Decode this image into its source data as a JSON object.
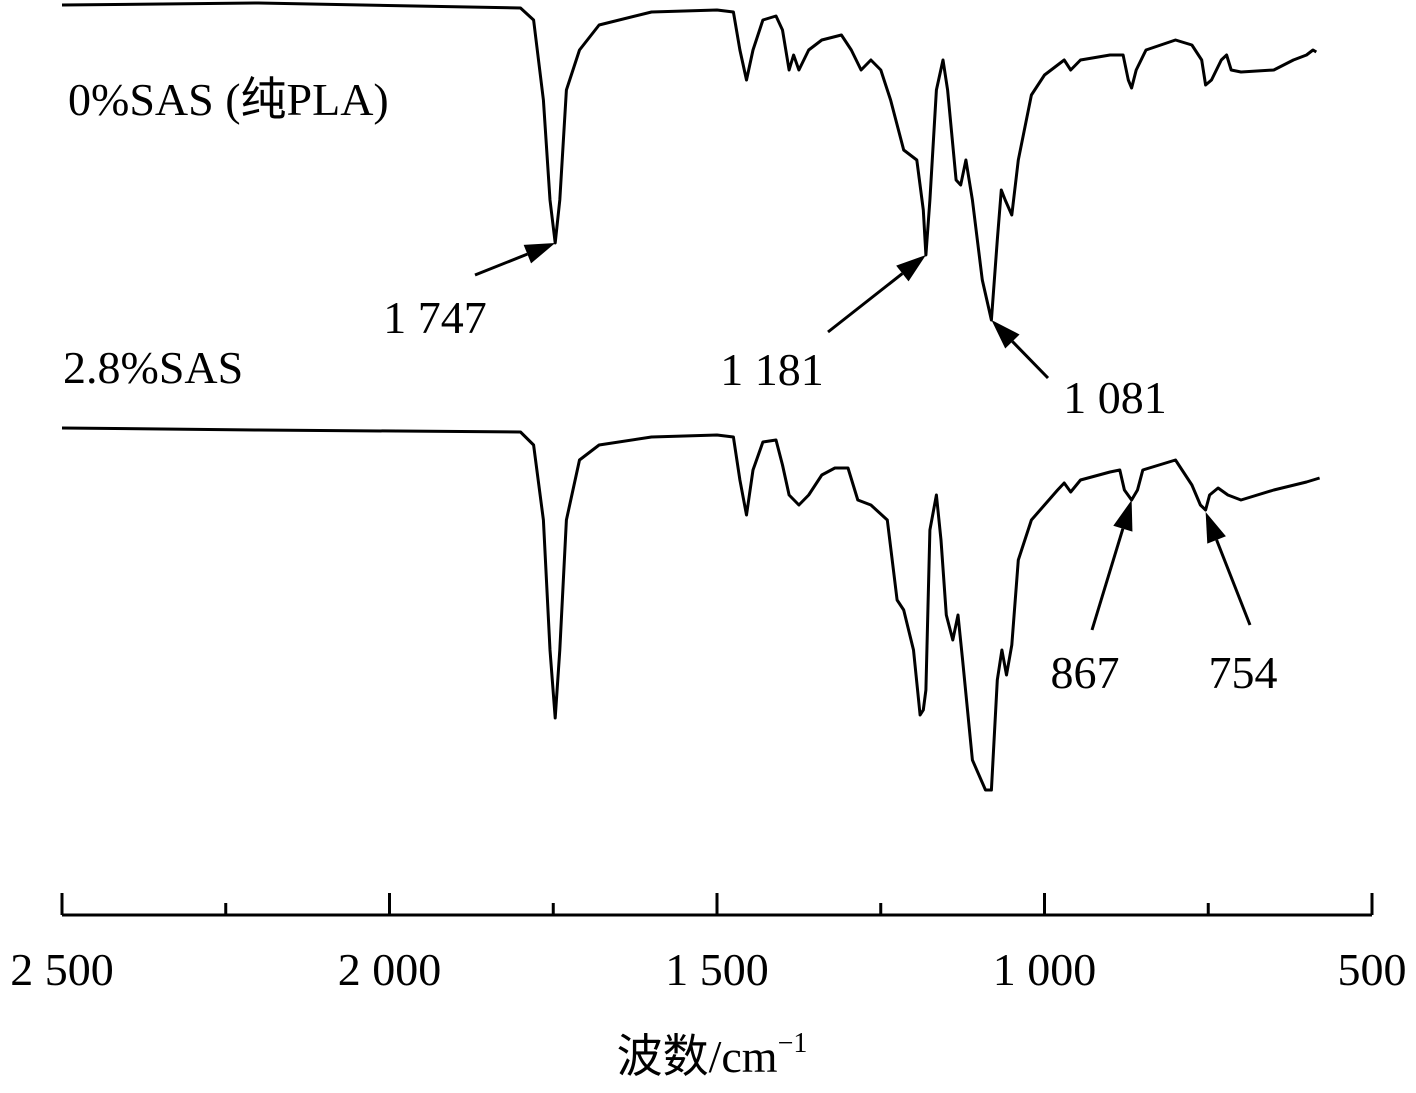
{
  "chart_data": {
    "type": "line",
    "xlabel": "波数/cm",
    "xlabel_sup": "−1",
    "xlim": [
      2500,
      500
    ],
    "xticks": [
      {
        "value": 2500,
        "label": "2 500"
      },
      {
        "value": 2000,
        "label": "2 000"
      },
      {
        "value": 1500,
        "label": "1 500"
      },
      {
        "value": 1000,
        "label": "1 000"
      },
      500
    ],
    "xminorticks": [
      2250,
      1750,
      1250,
      750
    ],
    "ylim": [
      0,
      900
    ],
    "series": [
      {
        "name": "0%SAS (纯PLA)",
        "color": "#000000",
        "x": [
          2500,
          2200,
          1800,
          1780,
          1765,
          1755,
          1747,
          1740,
          1730,
          1710,
          1680,
          1600,
          1500,
          1475,
          1465,
          1455,
          1445,
          1430,
          1410,
          1400,
          1390,
          1383,
          1375,
          1360,
          1340,
          1310,
          1295,
          1280,
          1265,
          1250,
          1235,
          1215,
          1195,
          1185,
          1181,
          1175,
          1165,
          1155,
          1148,
          1135,
          1128,
          1120,
          1110,
          1095,
          1081,
          1072,
          1066,
          1060,
          1050,
          1040,
          1020,
          1000,
          970,
          960,
          945,
          900,
          880,
          872,
          867,
          860,
          845,
          800,
          775,
          760,
          754,
          745,
          730,
          722,
          715,
          700,
          650,
          620,
          600,
          590,
          585
        ],
        "values": [
          895,
          897,
          892,
          880,
          800,
          700,
          657,
          700,
          810,
          850,
          875,
          888,
          890,
          888,
          850,
          820,
          850,
          880,
          884,
          870,
          830,
          845,
          830,
          850,
          860,
          865,
          850,
          830,
          840,
          830,
          800,
          750,
          740,
          690,
          645,
          700,
          810,
          840,
          810,
          720,
          715,
          740,
          700,
          620,
          580,
          660,
          710,
          700,
          685,
          740,
          805,
          825,
          840,
          830,
          840,
          845,
          845,
          820,
          812,
          830,
          850,
          860,
          855,
          840,
          815,
          820,
          840,
          845,
          830,
          828,
          830,
          840,
          845,
          850,
          848
        ]
      },
      {
        "name": "2.8%SAS",
        "color": "#000000",
        "x": [
          2500,
          2200,
          1800,
          1780,
          1765,
          1755,
          1747,
          1740,
          1730,
          1710,
          1680,
          1600,
          1500,
          1475,
          1465,
          1455,
          1445,
          1430,
          1410,
          1400,
          1390,
          1375,
          1360,
          1340,
          1320,
          1300,
          1285,
          1265,
          1240,
          1225,
          1215,
          1200,
          1190,
          1185,
          1181,
          1175,
          1165,
          1158,
          1150,
          1140,
          1132,
          1125,
          1110,
          1090,
          1081,
          1072,
          1065,
          1058,
          1050,
          1040,
          1020,
          980,
          970,
          960,
          945,
          900,
          885,
          878,
          867,
          858,
          850,
          800,
          775,
          762,
          754,
          748,
          735,
          720,
          700,
          650,
          600,
          580
        ],
        "values": [
          472,
          470,
          468,
          455,
          380,
          250,
          182,
          250,
          380,
          440,
          455,
          463,
          465,
          463,
          420,
          385,
          430,
          458,
          460,
          435,
          405,
          395,
          405,
          425,
          432,
          432,
          400,
          395,
          380,
          300,
          290,
          250,
          185,
          190,
          210,
          370,
          405,
          360,
          285,
          260,
          285,
          240,
          140,
          110,
          110,
          220,
          250,
          225,
          255,
          340,
          380,
          410,
          417,
          408,
          420,
          428,
          430,
          410,
          400,
          410,
          430,
          440,
          415,
          395,
          390,
          405,
          412,
          405,
          400,
          410,
          418,
          422
        ]
      }
    ],
    "annotations": [
      {
        "value": 1747,
        "label": "1 747",
        "y": 657
      },
      {
        "value": 1181,
        "label": "1 181",
        "y": 645
      },
      {
        "value": 1081,
        "label": "1 081",
        "y": 580
      },
      {
        "value": 867,
        "label": "867",
        "y": 400
      },
      {
        "value": 754,
        "label": "754",
        "y": 388
      }
    ]
  }
}
